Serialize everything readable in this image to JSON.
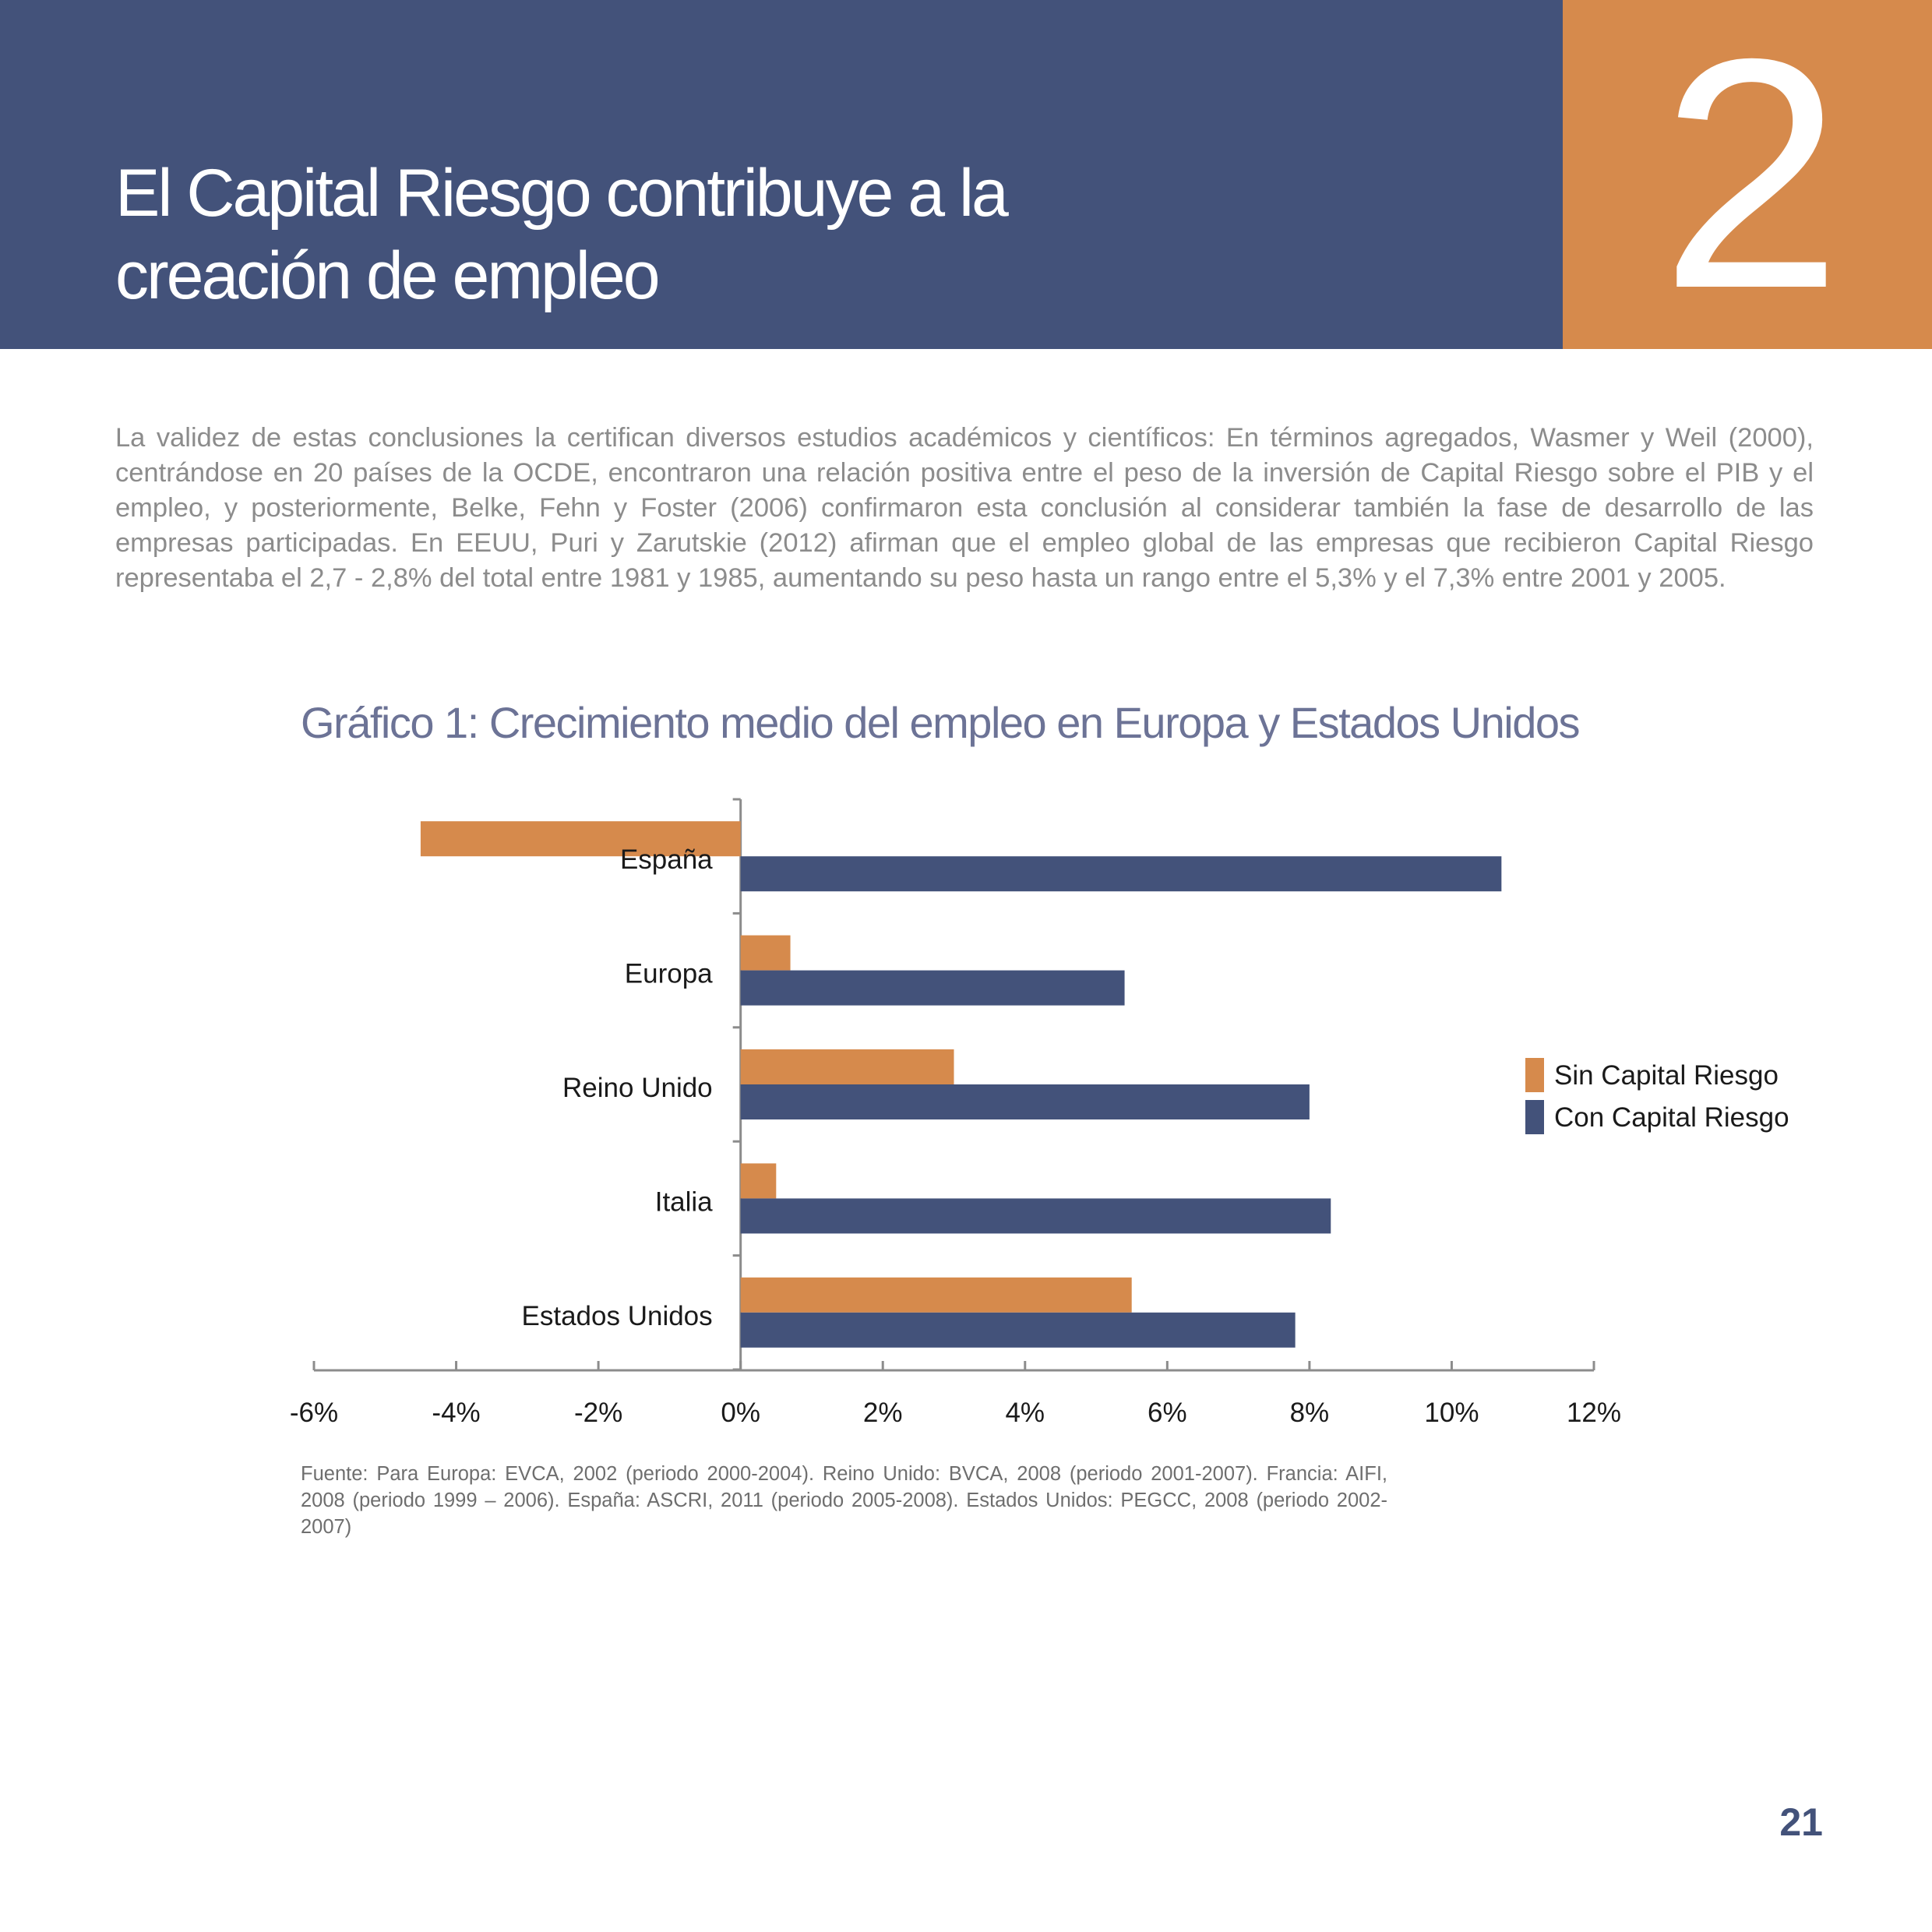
{
  "header": {
    "title_line1": "El Capital Riesgo contribuye a la",
    "title_line2": "creación de empleo",
    "chapter_number": "2"
  },
  "body": {
    "paragraph": "La validez de estas conclusiones la certifican diversos estudios académicos y científicos: En términos agregados, Wasmer y Weil (2000), centrándose en 20 países de la OCDE, encontraron una relación positiva entre el peso de la inversión de Capital Riesgo sobre el PIB y el empleo, y posteriormente, Belke, Fehn y Foster (2006) confirmaron esta conclusión al considerar también  la fase de desarrollo de las empresas participadas. En EEUU, Puri y Zarutskie (2012) afirman que el empleo global de las empresas que recibieron Capital Riesgo representaba el 2,7 - 2,8% del total entre 1981 y 1985, aumentando su peso hasta un rango entre el 5,3% y el 7,3% entre 2001 y 2005."
  },
  "chart_data": {
    "type": "bar",
    "orientation": "horizontal",
    "title": "Gráfico 1: Crecimiento medio del empleo en Europa y Estados Unidos",
    "categories": [
      "España",
      "Europa",
      "Reino Unido",
      "Italia",
      "Estados Unidos"
    ],
    "series": [
      {
        "name": "Sin Capital Riesgo",
        "color": "#d68a4c",
        "values": [
          -4.5,
          0.7,
          3.0,
          0.5,
          5.5
        ]
      },
      {
        "name": "Con Capital Riesgo",
        "color": "#43527a",
        "values": [
          10.7,
          5.4,
          8.0,
          8.3,
          7.8
        ]
      }
    ],
    "xlim": [
      -6,
      12
    ],
    "xticks": [
      "-6%",
      "-4%",
      "-2%",
      "0%",
      "2%",
      "4%",
      "6%",
      "8%",
      "10%",
      "12%"
    ],
    "grid": false,
    "legend": "right"
  },
  "source": "Fuente: Para Europa: EVCA, 2002 (periodo 2000-2004). Reino Unido: BVCA, 2008 (periodo 2001-2007). Francia: AIFI, 2008 (periodo 1999 – 2006). España: ASCRI, 2011 (periodo 2005-2008). Estados Unidos: PEGCC, 2008 (periodo 2002-2007)",
  "page_number": "21"
}
